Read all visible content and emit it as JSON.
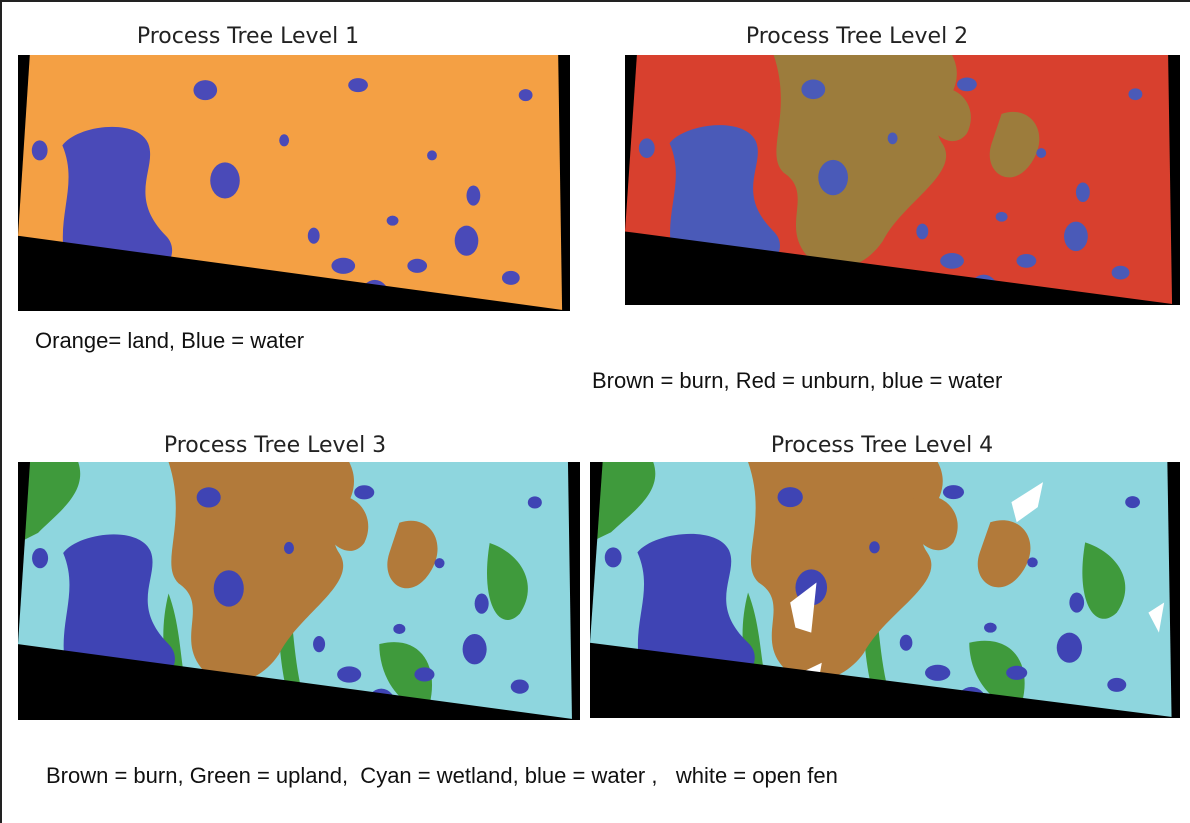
{
  "panels": [
    {
      "title": "Process Tree Level 1"
    },
    {
      "title": "Process Tree Level 2"
    },
    {
      "title": "Process Tree Level 3"
    },
    {
      "title": "Process Tree Level 4"
    }
  ],
  "captions": [
    "Orange= land, Blue = water",
    "Brown = burn, Red = unburn, blue = water",
    "Brown = burn, Green = upland,  Cyan = wetland, blue = water ,   white = open fen"
  ]
}
